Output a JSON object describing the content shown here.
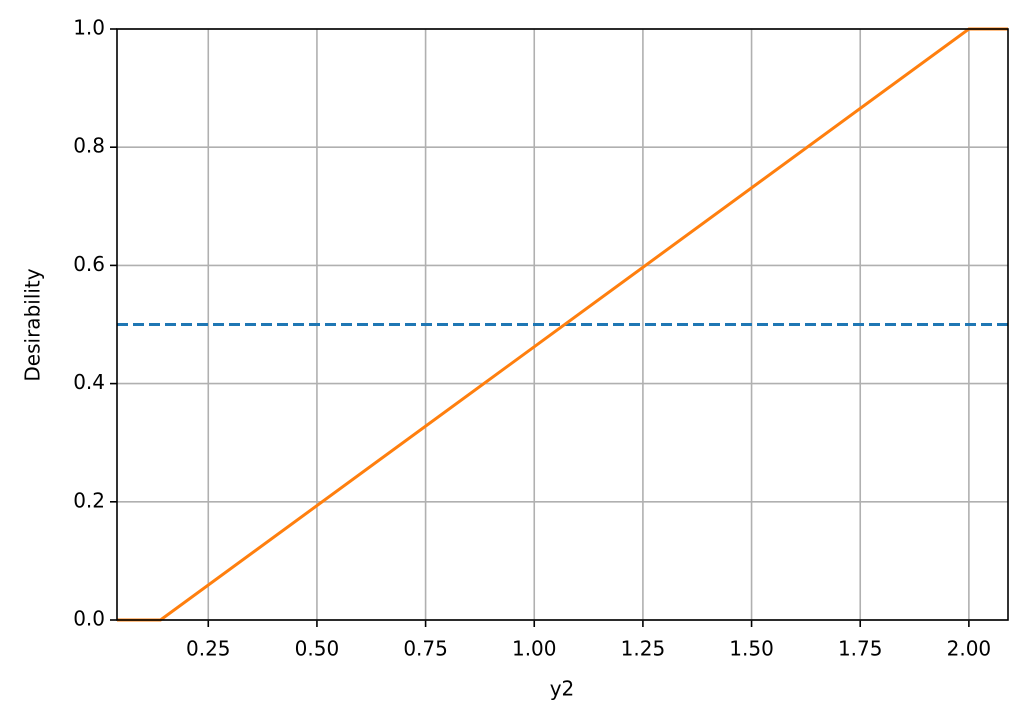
{
  "chart_data": {
    "type": "line",
    "x_label": "y2",
    "y_label": "Desirability",
    "series": [
      {
        "color": "#1f77b4",
        "dashed": true,
        "x": [
          0.04,
          2.09
        ],
        "values": [
          0.5,
          0.5
        ]
      },
      {
        "color": "#ff7f0e",
        "dashed": false,
        "x": [
          0.04,
          0.14,
          2.0,
          2.09
        ],
        "values": [
          0,
          0,
          1,
          1
        ]
      }
    ],
    "xlim": [
      0.04,
      2.09
    ],
    "ylim": [
      0,
      1
    ],
    "xticks": [
      0.25,
      {
        "value": 0.5,
        "label": "0.50"
      },
      0.75,
      {
        "value": 1,
        "label": "1.00"
      },
      1.25,
      {
        "value": 1.5,
        "label": "1.50"
      },
      1.75,
      {
        "value": 2,
        "label": "2.00"
      }
    ],
    "yticks": [
      {
        "value": 0,
        "label": "0.0"
      },
      0.2,
      0.4,
      0.6,
      0.8,
      {
        "value": 1,
        "label": "1.0"
      }
    ],
    "grid": true
  }
}
